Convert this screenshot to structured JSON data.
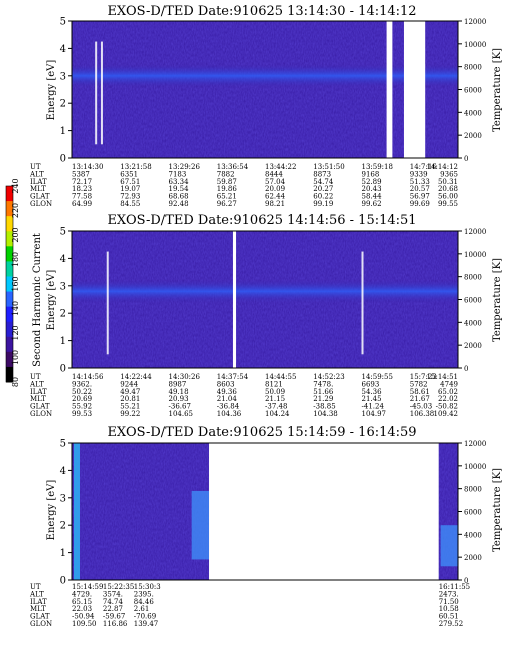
{
  "colors": {
    "plasma_bg": "#3a1ea8",
    "band": "#2f5cf5",
    "gap": "#ffffff",
    "streak": "#ffffff"
  },
  "colorbar": {
    "label": "Second Harmonic Current",
    "ticks": [
      "240",
      "220",
      "200",
      "180",
      "160",
      "140",
      "120",
      "100",
      "80"
    ],
    "colors": [
      "#f00000",
      "#ff7800",
      "#ffd800",
      "#b4f000",
      "#00d200",
      "#00d2a0",
      "#00c8ff",
      "#2a64ff",
      "#1e1eff",
      "#2a1ed2",
      "#3c14a0",
      "#3c0a64",
      "#000000"
    ]
  },
  "chart_data": [
    {
      "type": "heatmap",
      "title": "EXOS-D/TED   Date:910625   13:14:30 - 14:14:12",
      "ylabel": "Energy [eV]",
      "ylabel_right": "Temperature [K]",
      "yticks": [
        "0",
        "1",
        "2",
        "3",
        "4",
        "5"
      ],
      "yticks_right": [
        "0",
        "2000",
        "4000",
        "6000",
        "8000",
        "10000",
        "12000"
      ],
      "ylim": [
        0,
        5
      ],
      "ylim_right": [
        0,
        12000
      ],
      "x_label_ut": [
        "13:14:30",
        "13:21:58",
        "13:29:26",
        "13:36:54",
        "13:44:22",
        "13:51:50",
        "13:59:18",
        "14:7:16",
        "14:14:12"
      ],
      "band_energy_eV": 3.0,
      "gaps_fraction": [
        [
          0.815,
          0.83
        ],
        [
          0.86,
          0.915
        ]
      ],
      "streaks_fraction": [
        0.06,
        0.075
      ],
      "ephemeris": {
        "UT": [
          "13:14:30",
          "13:21:58",
          "13:29:26",
          "13:36:54",
          "13:44:22",
          "13:51:50",
          "13:59:18",
          "14:7:16",
          "14:14:12"
        ],
        "ALT": [
          "5387",
          "6351",
          "7183",
          "7882",
          "8444",
          "8873",
          "9168",
          "9339",
          "9365"
        ],
        "ILAT": [
          "72.17",
          "67.51",
          "63.34",
          "59.87",
          "57.04",
          "54.74",
          "52.89",
          "51.33",
          "50.31"
        ],
        "MLT": [
          "18.23",
          "19.07",
          "19.54",
          "19.86",
          "20.09",
          "20.27",
          "20.43",
          "20.57",
          "20.68"
        ],
        "GLAT": [
          "77.58",
          "72.93",
          "68.68",
          "65.21",
          "62.44",
          "60.22",
          "58.44",
          "56.97",
          "56.00"
        ],
        "GLON": [
          "64.99",
          "84.55",
          "92.48",
          "96.27",
          "98.21",
          "99.19",
          "99.62",
          "99.69",
          "99.55"
        ]
      }
    },
    {
      "type": "heatmap",
      "title": "EXOS-D/TED   Date:910625   14:14:56 - 15:14:51",
      "ylabel": "Energy [eV]",
      "ylabel_right": "Temperature [K]",
      "yticks": [
        "0",
        "1",
        "2",
        "3",
        "4",
        "5"
      ],
      "yticks_right": [
        "0",
        "2000",
        "4000",
        "6000",
        "8000",
        "10000",
        "12000"
      ],
      "ylim": [
        0,
        5
      ],
      "ylim_right": [
        0,
        12000
      ],
      "x_label_ut": [
        "14:14:56",
        "14:22:44",
        "14:30:26",
        "14:37:54",
        "14:44:55",
        "14:52:23",
        "14:59:55",
        "15:7:23",
        "15:14:51"
      ],
      "band_energy_eV": 2.8,
      "gaps_fraction": [
        [
          0.417,
          0.425
        ]
      ],
      "streaks_fraction": [
        0.09,
        0.75
      ],
      "ephemeris": {
        "UT": [
          "14:14:56",
          "14:22:44",
          "14:30:26",
          "14:37:54",
          "14:44:55",
          "14:52:23",
          "14:59:55",
          "15:7:23",
          "15:14:51"
        ],
        "ALT": [
          "9362.",
          "9244",
          "8987",
          "8603",
          "8121",
          "7478.",
          "6693",
          "5782",
          "4749"
        ],
        "ILAT": [
          "50.22",
          "49.47",
          "49.18",
          "49.36",
          "50.09",
          "51.66",
          "54.36",
          "58.61",
          "65.02"
        ],
        "MLT": [
          "20.69",
          "20.81",
          "20.93",
          "21.04",
          "21.15",
          "21.29",
          "21.45",
          "21.67",
          "22.02"
        ],
        "GLAT": [
          "55.92",
          "55.21",
          "-36.67",
          "-36.84",
          "-37.48",
          "-38.85",
          "-41.24",
          "-45.03",
          "-50.82"
        ],
        "GLON": [
          "99.53",
          "99.22",
          "104.65",
          "104.36",
          "104.24",
          "104.38",
          "104.97",
          "106.38",
          "109.42"
        ]
      }
    },
    {
      "type": "heatmap",
      "title": "EXOS-D/TED   Date:910625   15:14:59 - 16:14:59",
      "ylabel": "Energy [eV]",
      "ylabel_right": "Temperature [K]",
      "yticks": [
        "0",
        "1",
        "2",
        "3",
        "4",
        "5"
      ],
      "yticks_right": [
        "0",
        "2000",
        "4000",
        "6000",
        "8000",
        "10000",
        "12000"
      ],
      "ylim": [
        0,
        5
      ],
      "ylim_right": [
        0,
        12000
      ],
      "x_label_ut": [
        "15:14:59",
        "15:22:35",
        "15:30:3",
        "16:11:55"
      ],
      "band_energy_eV": null,
      "gaps_fraction": [
        [
          0.355,
          0.95
        ]
      ],
      "streaks_fraction": [],
      "ephemeris": {
        "UT": [
          "15:14:59",
          "15:22:35",
          "15:30:3",
          "16:11:55"
        ],
        "ALT": [
          "4729.",
          "3574.",
          "2395.",
          "2473."
        ],
        "ILAT": [
          "65.15",
          "74.74",
          "84.46",
          "71.50"
        ],
        "MLT": [
          "22.03",
          "22.87",
          "2.61",
          "10.58"
        ],
        "GLAT": [
          "-50.94",
          "-59.67",
          "-70.69",
          "60.51"
        ],
        "GLON": [
          "109.50",
          "116.86",
          "139.47",
          "279.52"
        ]
      }
    }
  ]
}
